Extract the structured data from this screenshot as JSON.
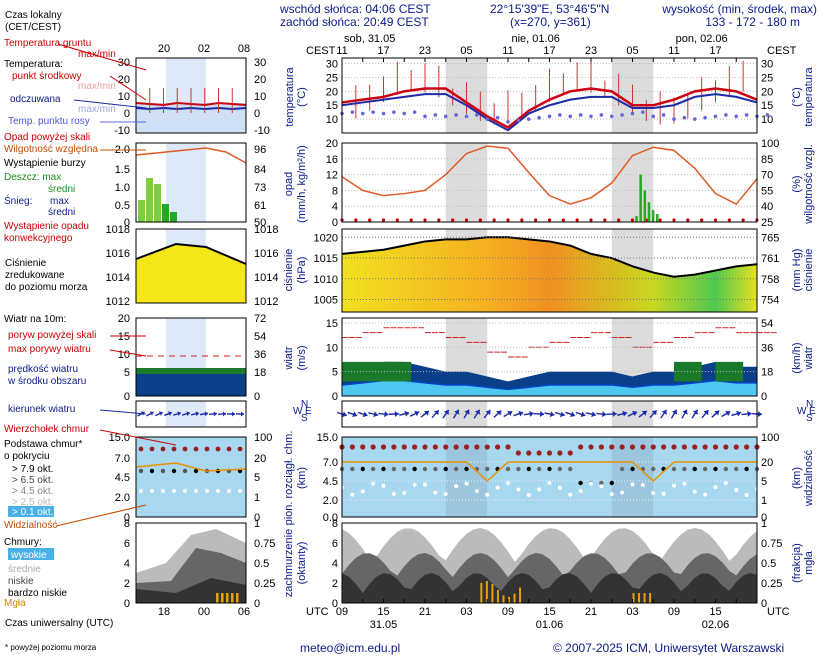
{
  "header": {
    "sunrise": "wschód słońca: 04:06 CEST",
    "sunset": "zachód słońca: 20:49 CEST",
    "coords": "22°15'39\"E, 53°46'5\"N",
    "grid": "(x=270, y=361)",
    "elevation_title": "wysokość (min, środek, max)",
    "elevation_values": "133 - 172 - 180 m"
  },
  "time_axis": {
    "top_unit": "CEST",
    "bottom_unit": "UTC",
    "day_labels": [
      "sob, 31.05",
      "nie, 01.06",
      "pon, 02.06"
    ],
    "top_hours": [
      "11",
      "17",
      "23",
      "05",
      "11",
      "17",
      "23",
      "05",
      "11",
      "17"
    ],
    "bottom_hours": [
      "09",
      "15",
      "21",
      "03",
      "09",
      "15",
      "21",
      "03",
      "09",
      "15"
    ],
    "bottom_dates": [
      "31.05",
      "01.06",
      "02.06"
    ],
    "legend_top_hours": [
      "20",
      "02",
      "08"
    ],
    "legend_bottom_hours": [
      "18",
      "00",
      "06"
    ]
  },
  "legend": {
    "czas_lokalny": "Czas lokalny (CET/CEST)",
    "temp_gruntu": "Temperatura gruntu",
    "max_min": "max/min",
    "temperatura": "Temperatura:",
    "punkt_srodkowy": "punkt środkowy",
    "max_min_a": "max/min",
    "odczuwana": "odczuwana",
    "max_min_b": "max/min",
    "temp_punktu_rosy": "Temp. punktu rosy",
    "opad_powyzej": "Opad powyżej skali",
    "wilgotnosc": "Wilgotność względna",
    "burza": "Wystąpienie burzy",
    "deszcz": "Deszcz: max",
    "deszcz_sr": "średni",
    "snieg": "Śnieg:",
    "snieg_max": "max",
    "snieg_sr": "średni",
    "wystapienie_opadu": "Wystąpienie opadu konwekcyjnego",
    "cisnienie": "Ciśnienie zredukowane do poziomu morza",
    "wiatr_na": "Wiatr na 10m:",
    "poryw_powyzej": "poryw powyżej skali",
    "max_porywy": "max porywy wiatru",
    "predkosc": "prędkość wiatru w środku obszaru",
    "kierunek": "kierunek wiatru",
    "wierzcholek": "Wierzchołek chmur",
    "podstawa": "Podstawa chmur* o pokryciu",
    "okt": [
      "> 7.9 okt.",
      "> 6.5 okt.",
      "> 4.5 okt.",
      "> 2.5 okt.",
      "> 0.1 okt."
    ],
    "widzialnosc": "Widzialność",
    "chmury": "Chmury:",
    "wysokie": "wysokie",
    "srednie": "średnie",
    "niskie": "niskie",
    "bardzo_niskie": "bardzo niskie",
    "mgla": "Mgła",
    "czas_uniwersalny": "Czas uniwersalny (UTC)",
    "footnote": "* powyżej poziomu morza"
  },
  "footer": {
    "email": "meteo@icm.edu.pl",
    "copyright": "© 2007-2025 ICM, Uniwersytet Warszawski"
  },
  "colors": {
    "night": "#dcdcdc",
    "temp": "#cc0011",
    "feels": "#1a2aa8",
    "dew": "#6666dd",
    "humidity": "#e05a28",
    "pressure_fill": "#f5e61a",
    "wind_fill": "#1a7a2a",
    "sky": "#a8d8f0"
  },
  "chart_data": [
    {
      "type": "line",
      "title": "temperatura (°C)",
      "ylabel": "temperatura (°C)",
      "y_ticks": [
        10,
        15,
        20,
        25,
        30
      ],
      "ylim": [
        5,
        32
      ],
      "series": [
        {
          "name": "punkt środkowy",
          "x_hours": [
            0,
            3,
            6,
            9,
            12,
            15,
            18,
            21,
            24,
            27,
            30,
            33,
            36,
            39,
            42,
            45,
            48,
            51,
            54,
            57,
            60
          ],
          "values": [
            16,
            17,
            18,
            20,
            21,
            21,
            16,
            11,
            7,
            13,
            17,
            20,
            21,
            20,
            15,
            15,
            17,
            20,
            21,
            20,
            17
          ]
        },
        {
          "name": "odczuwana",
          "x_hours": [
            0,
            3,
            6,
            9,
            12,
            15,
            18,
            21,
            24,
            27,
            30,
            33,
            36,
            39,
            42,
            45,
            48,
            51,
            54,
            57,
            60
          ],
          "values": [
            15,
            16,
            17,
            18,
            19,
            19,
            15,
            10,
            6,
            12,
            15,
            17,
            18,
            18,
            14,
            14,
            15,
            18,
            19,
            18,
            16
          ]
        },
        {
          "name": "Temp. punktu rosy",
          "x_hours": [
            0,
            3,
            6,
            9,
            12,
            15,
            18,
            21,
            24,
            27,
            30,
            33,
            36,
            39,
            42,
            45,
            48,
            51,
            54,
            57,
            60
          ],
          "values": [
            12,
            12,
            12,
            12,
            11,
            11,
            11,
            10,
            9,
            10,
            11,
            11,
            11,
            11,
            12,
            11,
            10,
            10,
            11,
            11,
            11
          ]
        }
      ]
    },
    {
      "type": "line",
      "title": "opad / wilgotność",
      "ylabel": "opad (mm/h, kg/m²/h)",
      "y2label": "wilgotność wzgl. (%)",
      "y_ticks": [
        0,
        4,
        8,
        12,
        16,
        20
      ],
      "y2_ticks": [
        25,
        40,
        55,
        70,
        85,
        100
      ],
      "series": [
        {
          "name": "wilgotność",
          "x_hours": [
            0,
            3,
            6,
            9,
            12,
            15,
            18,
            21,
            24,
            27,
            30,
            33,
            36,
            39,
            42,
            45,
            48,
            51,
            54,
            57,
            60
          ],
          "values": [
            68,
            55,
            50,
            52,
            55,
            70,
            90,
            97,
            95,
            72,
            50,
            42,
            48,
            62,
            88,
            96,
            93,
            76,
            52,
            42,
            66
          ]
        }
      ]
    },
    {
      "type": "area",
      "title": "ciśnienie (hPa)",
      "ylabel": "ciśnienie (hPa)",
      "y2label": "(mm Hg)",
      "y_ticks": [
        1005,
        1010,
        1015,
        1020
      ],
      "y2_ticks": [
        754,
        758,
        761,
        765
      ],
      "series": [
        {
          "name": "ciśnienie",
          "x_hours": [
            0,
            3,
            6,
            9,
            12,
            15,
            18,
            21,
            24,
            27,
            30,
            33,
            36,
            39,
            42,
            45,
            48,
            51,
            54,
            57,
            60
          ],
          "values": [
            1016,
            1016.5,
            1017,
            1018,
            1019,
            1019.5,
            1019.5,
            1020,
            1020,
            1019.5,
            1019,
            1018,
            1016,
            1015,
            1013,
            1011.5,
            1010.5,
            1011,
            1012,
            1013,
            1013.5
          ]
        }
      ]
    },
    {
      "type": "area",
      "title": "wiatr (m/s)",
      "ylabel": "wiatr (m/s)",
      "y2label": "(km/h) wiatr",
      "y_ticks": [
        0,
        5,
        10,
        15
      ],
      "y2_ticks": [
        0,
        18,
        36,
        54
      ],
      "series": [
        {
          "name": "prędkość wiatru",
          "x_hours": [
            0,
            3,
            6,
            9,
            12,
            15,
            18,
            21,
            24,
            27,
            30,
            33,
            36,
            39,
            42,
            45,
            48,
            51,
            54,
            57,
            60
          ],
          "values": [
            5,
            6,
            7,
            7,
            6,
            5,
            5,
            4,
            3,
            4,
            5,
            5,
            5,
            5,
            4,
            5,
            5,
            6,
            7,
            6,
            6
          ]
        },
        {
          "name": "max porywy wiatru",
          "x_hours": [
            0,
            3,
            6,
            9,
            12,
            15,
            18,
            21,
            24,
            27,
            30,
            33,
            36,
            39,
            42,
            45,
            48,
            51,
            54,
            57,
            60
          ],
          "values": [
            12,
            13,
            14,
            14,
            13,
            12,
            11,
            9,
            8,
            10,
            11,
            12,
            13,
            12,
            10,
            11,
            12,
            13,
            14,
            13,
            13
          ]
        }
      ]
    },
    {
      "type": "line",
      "title": "pion. rozciągł. chm. (km) / widzialność (km)",
      "ylabel": "pion. rozciągł. chm. (km)",
      "y2label": "widzialność (km)",
      "y_ticks": [
        0,
        2.0,
        4.5,
        7.0,
        15.0
      ],
      "y2_ticks": [
        0,
        1,
        5,
        20,
        100
      ],
      "series": [
        {
          "name": "Widzialność",
          "x_hours": [
            0,
            6,
            12,
            18,
            21,
            24,
            30,
            36,
            42,
            45,
            48,
            54,
            60
          ],
          "values": [
            20,
            20,
            20,
            20,
            10,
            20,
            20,
            20,
            20,
            5,
            20,
            20,
            20
          ]
        }
      ]
    },
    {
      "type": "area",
      "title": "zachmurzenie (oktanty) / mgła (frakcja)",
      "ylabel": "zachmurzenie (oktanty)",
      "y2label": "mgła (frakcja)",
      "y_ticks": [
        0,
        2,
        4,
        6,
        8
      ],
      "y2_ticks": [
        0,
        0.25,
        0.5,
        0.75,
        1
      ]
    }
  ]
}
